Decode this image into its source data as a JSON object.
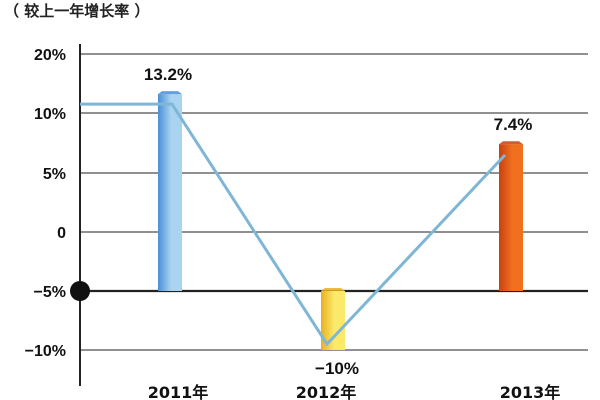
{
  "chart_data": {
    "type": "bar",
    "title": "",
    "ylabel": "（ 较上一年增长率 ）",
    "xlabel": "",
    "categories": [
      "2011年",
      "2012年",
      "2013年"
    ],
    "series": [
      {
        "values": [
          13.2,
          -10,
          7.4
        ]
      }
    ],
    "data_labels": [
      "13.2%",
      "−10%",
      "7.4%"
    ],
    "y_ticks": [
      20,
      10,
      5,
      0,
      -5,
      -10
    ],
    "y_tick_labels": [
      "20%",
      "10%",
      "5%",
      "0",
      "−5%",
      "−10%"
    ],
    "ylim": [
      -12,
      22
    ],
    "grid": true,
    "trend_line": true,
    "colors": {
      "2011年": [
        "#4a8fd6",
        "#a8d4f0"
      ],
      "2012年": [
        "#e8b020",
        "#fbe96a"
      ],
      "2013年": [
        "#c94010",
        "#f07020"
      ],
      "trend_line": "#7fb6d6",
      "grid": "#222222"
    }
  }
}
